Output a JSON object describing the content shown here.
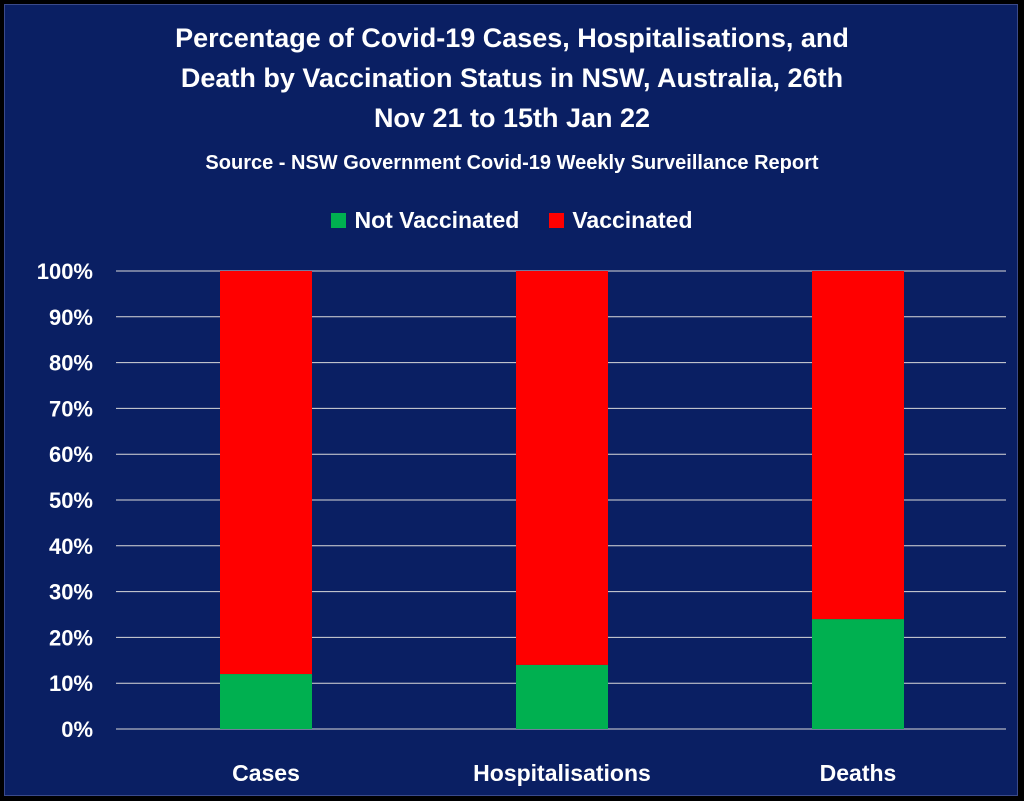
{
  "chart_data": {
    "type": "bar",
    "stacked": true,
    "title_lines": [
      "Percentage of Covid-19 Cases, Hospitalisations, and",
      "Death by Vaccination Status in NSW, Australia, 26th",
      "Nov 21 to 15th Jan 22"
    ],
    "subtitle": "Source - NSW Government Covid-19 Weekly Surveillance Report",
    "categories": [
      "Cases",
      "Hospitalisations",
      "Deaths"
    ],
    "series": [
      {
        "name": "Not Vaccinated",
        "values": [
          12,
          14,
          24
        ],
        "color": "#00b050"
      },
      {
        "name": "Vaccinated",
        "values": [
          88,
          86,
          76
        ],
        "color": "#ff0000"
      }
    ],
    "ylim": [
      0,
      100
    ],
    "yticks": [
      "0%",
      "10%",
      "20%",
      "30%",
      "40%",
      "50%",
      "60%",
      "70%",
      "80%",
      "90%",
      "100%"
    ],
    "grid": true,
    "legend_position": "top",
    "background": "#0a1f63"
  }
}
